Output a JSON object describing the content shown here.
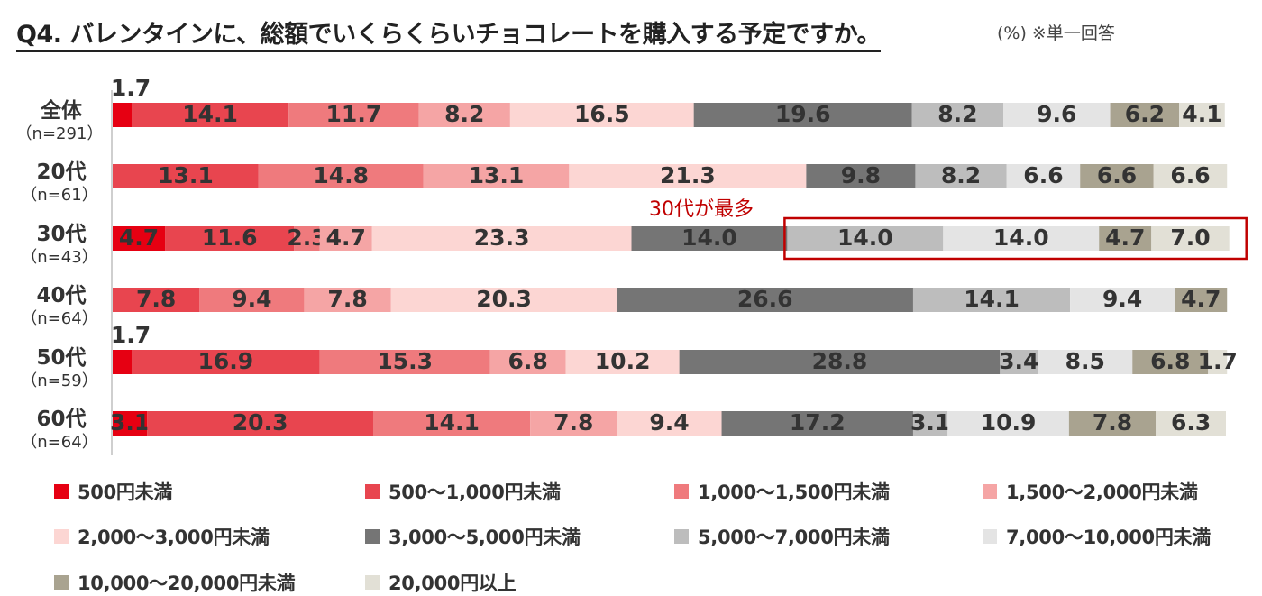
{
  "title": "Q4. バレンタインに、総額でいくらくらいチョコレートを購入する予定ですか。",
  "note": "(%) ※単一回答",
  "callout": "30代が最多",
  "chart_data": {
    "type": "bar",
    "orientation": "horizontal",
    "stacked": true,
    "xlim": [
      0,
      100
    ],
    "unit": "%",
    "grid": false,
    "legend_position": "bottom",
    "categories": [
      {
        "label": "全体",
        "n": "（n=291）"
      },
      {
        "label": "20代",
        "n": "（n=61）"
      },
      {
        "label": "30代",
        "n": "（n=43）"
      },
      {
        "label": "40代",
        "n": "（n=64）"
      },
      {
        "label": "50代",
        "n": "（n=59）"
      },
      {
        "label": "60代",
        "n": "（n=64）"
      }
    ],
    "series": [
      {
        "name": "500円未満",
        "color": "#e60012",
        "values": [
          1.7,
          0,
          4.7,
          0,
          1.7,
          3.1
        ]
      },
      {
        "name": "500〜1,000円未満",
        "color": "#e8454f",
        "values": [
          14.1,
          13.1,
          11.6,
          7.8,
          16.9,
          20.3
        ]
      },
      {
        "name": "1,000〜1,500円未満",
        "color": "#ef7a7d",
        "values": [
          11.7,
          14.8,
          2.3,
          9.4,
          15.3,
          14.1
        ]
      },
      {
        "name": "1,500〜2,000円未満",
        "color": "#f5a5a5",
        "values": [
          8.2,
          13.1,
          4.7,
          7.8,
          6.8,
          7.8
        ]
      },
      {
        "name": "2,000〜3,000円未満",
        "color": "#fcd6d3",
        "values": [
          16.5,
          21.3,
          23.3,
          20.3,
          10.2,
          9.4
        ]
      },
      {
        "name": "3,000〜5,000円未満",
        "color": "#757575",
        "values": [
          19.6,
          9.8,
          14.0,
          26.6,
          28.8,
          17.2
        ]
      },
      {
        "name": "5,000〜7,000円未満",
        "color": "#bdbdbd",
        "values": [
          8.2,
          8.2,
          14.0,
          14.1,
          3.4,
          3.1
        ]
      },
      {
        "name": "7,000〜10,000円未満",
        "color": "#e4e4e4",
        "values": [
          9.6,
          6.6,
          14.0,
          9.4,
          8.5,
          10.9
        ]
      },
      {
        "name": "10,000〜20,000円未満",
        "color": "#a9a390",
        "values": [
          6.2,
          6.6,
          4.7,
          4.7,
          6.8,
          7.8
        ]
      },
      {
        "name": "20,000円以上",
        "color": "#e2e0d6",
        "values": [
          4.1,
          6.6,
          7.0,
          0,
          1.7,
          6.3
        ]
      }
    ],
    "highlight": {
      "category_index": 2,
      "from_series": 6,
      "to_series": 9,
      "color": "#c00000"
    }
  }
}
